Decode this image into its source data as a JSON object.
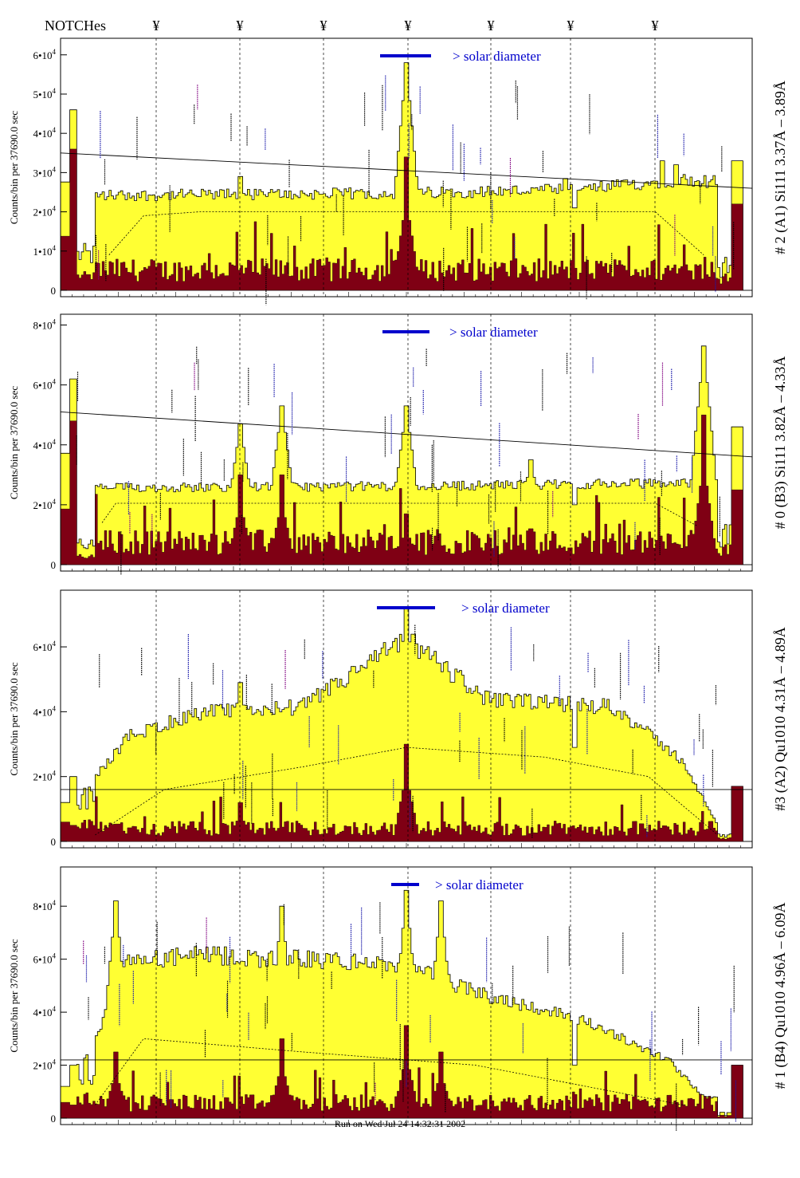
{
  "header": {
    "label": "NOTCHes",
    "notch_symbol": "¥",
    "notch_positions": [
      196,
      301,
      406,
      512,
      616,
      716,
      822
    ]
  },
  "footer": {
    "text": "Run on Wed Jul 24 14:32:31 2002"
  },
  "colors": {
    "fill": "#ffff33",
    "dark": "#7f0014",
    "accent": "#0000cc",
    "label_blue": "#1a1aaa",
    "label_purple": "#800080",
    "line": "#000000"
  },
  "chart_data": [
    {
      "type": "area",
      "ylabel": "Counts/bin per  37690.0 sec",
      "side_label": "# 2 (A1) Si111  3.37Å – 3.89Å",
      "annotation": "> solar diameter",
      "yticks": [
        {
          "v": 0,
          "label": "0"
        },
        {
          "v": 10000,
          "label": "1•10",
          "sup": "4"
        },
        {
          "v": 20000,
          "label": "2•10",
          "sup": "4"
        },
        {
          "v": 30000,
          "label": "3•10",
          "sup": "4"
        },
        {
          "v": 40000,
          "label": "4•10",
          "sup": "4"
        },
        {
          "v": 50000,
          "label": "5•10",
          "sup": "4"
        },
        {
          "v": 60000,
          "label": "6•10",
          "sup": "4"
        }
      ],
      "ymax": 63000,
      "fit_line": [
        35000,
        26000
      ],
      "outer_start": 28000,
      "outer_end": 27000,
      "left_edge": [
        46000,
        36000,
        10000
      ],
      "right_edge": [
        22000,
        30000,
        33000
      ],
      "plateau": [
        {
          "x": 0.13,
          "y": 24500
        },
        {
          "x": 0.5,
          "y": 25000
        },
        {
          "x": 0.75,
          "y": 26000
        },
        {
          "x": 0.9,
          "y": 28500
        },
        {
          "x": 0.94,
          "y": 28000
        }
      ],
      "dark_level": 4500,
      "spikes": [
        {
          "x": 0.5,
          "y": 58000,
          "d": 34000
        },
        {
          "x": 0.26,
          "y": 29000
        },
        {
          "x": 0.73,
          "y": 28500
        },
        {
          "x": 0.87,
          "y": 33000
        },
        {
          "x": 0.89,
          "y": 32000
        }
      ],
      "notches": [
        {
          "x": 0.744,
          "y": 21000
        }
      ],
      "dashed": [
        {
          "x": 0.07,
          "y": 9000
        },
        {
          "x": 0.12,
          "y": 19000
        },
        {
          "x": 0.2,
          "y": 20000
        },
        {
          "x": 0.86,
          "y": 20000
        },
        {
          "x": 0.93,
          "y": 9000
        }
      ]
    },
    {
      "type": "area",
      "ylabel": "Counts/bin per  37690.0 sec",
      "side_label": "# 0 (B3) Si111  3.82Å – 4.33Å",
      "annotation": "> solar diameter",
      "yticks": [
        {
          "v": 0,
          "label": "0"
        },
        {
          "v": 20000,
          "label": "2•10",
          "sup": "4"
        },
        {
          "v": 40000,
          "label": "4•10",
          "sup": "4"
        },
        {
          "v": 60000,
          "label": "6•10",
          "sup": "4"
        },
        {
          "v": 80000,
          "label": "8•10",
          "sup": "4"
        }
      ],
      "ymax": 82000,
      "fit_line": [
        51000,
        36000
      ],
      "outer_start": 27000,
      "outer_end": 27000,
      "left_edge": [
        62000,
        48000,
        8000
      ],
      "right_edge": [
        25000,
        45000,
        46000
      ],
      "plateau": [
        {
          "x": 0.06,
          "y": 26000
        },
        {
          "x": 0.5,
          "y": 26500
        },
        {
          "x": 0.88,
          "y": 27500
        }
      ],
      "dark_level": 6500,
      "spikes": [
        {
          "x": 0.26,
          "y": 47000,
          "d": 30000
        },
        {
          "x": 0.32,
          "y": 53000,
          "d": 30000
        },
        {
          "x": 0.5,
          "y": 53000,
          "d": 17000
        },
        {
          "x": 0.68,
          "y": 35000,
          "d": 12000
        },
        {
          "x": 0.93,
          "y": 73000,
          "d": 50000
        }
      ],
      "notches": [
        {
          "x": 0.744,
          "y": 20000
        }
      ],
      "dashed": [
        {
          "x": 0.06,
          "y": 14000
        },
        {
          "x": 0.08,
          "y": 20500
        },
        {
          "x": 0.86,
          "y": 20500
        },
        {
          "x": 0.92,
          "y": 13000
        }
      ]
    },
    {
      "type": "area",
      "ylabel": "Counts/bin per  37690.0 sec",
      "side_label": "#3 (A2) Qu1010  4.31Å – 4.89Å",
      "annotation": "> solar diameter",
      "yticks": [
        {
          "v": 0,
          "label": "0"
        },
        {
          "v": 20000,
          "label": "2•10",
          "sup": "4"
        },
        {
          "v": 40000,
          "label": "4•10",
          "sup": "4"
        },
        {
          "v": 60000,
          "label": "6•10",
          "sup": "4"
        }
      ],
      "ymax": 76000,
      "fit_line": [
        16000,
        16000
      ],
      "outer_start": 16000,
      "outer_end": 16000,
      "left_edge": [
        20000,
        5000,
        15000
      ],
      "right_edge": [
        20000,
        8000,
        17000
      ],
      "plateau": [
        {
          "x": 0.05,
          "y": 20000
        },
        {
          "x": 0.1,
          "y": 33000
        },
        {
          "x": 0.2,
          "y": 40000
        },
        {
          "x": 0.35,
          "y": 42000
        },
        {
          "x": 0.5,
          "y": 63000
        },
        {
          "x": 0.62,
          "y": 44000
        },
        {
          "x": 0.8,
          "y": 42000
        },
        {
          "x": 0.9,
          "y": 25000
        },
        {
          "x": 0.95,
          "y": 5000
        }
      ],
      "dark_level": 3500,
      "spikes": [
        {
          "x": 0.5,
          "y": 72000,
          "d": 30000
        },
        {
          "x": 0.26,
          "y": 49000,
          "d": 12000
        }
      ],
      "notches": [
        {
          "x": 0.744,
          "y": 29000
        }
      ],
      "dashed": [
        {
          "x": 0.05,
          "y": 2000
        },
        {
          "x": 0.15,
          "y": 16000
        },
        {
          "x": 0.35,
          "y": 23000
        },
        {
          "x": 0.5,
          "y": 29000
        },
        {
          "x": 0.7,
          "y": 26000
        },
        {
          "x": 0.85,
          "y": 20000
        },
        {
          "x": 0.95,
          "y": 2000
        }
      ]
    },
    {
      "type": "area",
      "ylabel": "Counts/bin per  37690.0 sec",
      "side_label": "# 1 (B4) Qu1010 4.96Å – 6.09Å",
      "annotation": "> solar diameter",
      "yticks": [
        {
          "v": 0,
          "label": "0"
        },
        {
          "v": 20000,
          "label": "2•10",
          "sup": "4"
        },
        {
          "v": 40000,
          "label": "4•10",
          "sup": "4"
        },
        {
          "v": 60000,
          "label": "6•10",
          "sup": "4"
        },
        {
          "v": 80000,
          "label": "8•10",
          "sup": "4"
        }
      ],
      "ymax": 93000,
      "fit_line": [
        22000,
        22000
      ],
      "outer_start": 22000,
      "outer_end": 22000,
      "left_edge": [
        20000,
        5000,
        20000
      ],
      "right_edge": [
        20000,
        8000,
        20000
      ],
      "plateau": [
        {
          "x": 0.05,
          "y": 30000
        },
        {
          "x": 0.1,
          "y": 60000
        },
        {
          "x": 0.2,
          "y": 62000
        },
        {
          "x": 0.4,
          "y": 60000
        },
        {
          "x": 0.5,
          "y": 58000
        },
        {
          "x": 0.6,
          "y": 48000
        },
        {
          "x": 0.75,
          "y": 38000
        },
        {
          "x": 0.88,
          "y": 22000
        },
        {
          "x": 0.93,
          "y": 8000
        }
      ],
      "dark_level": 5000,
      "spikes": [
        {
          "x": 0.08,
          "y": 82000,
          "d": 25000
        },
        {
          "x": 0.32,
          "y": 80000,
          "d": 30000
        },
        {
          "x": 0.5,
          "y": 86000,
          "d": 35000
        },
        {
          "x": 0.55,
          "y": 82000,
          "d": 25000
        }
      ],
      "notches": [
        {
          "x": 0.744,
          "y": 20000
        }
      ],
      "dashed": [
        {
          "x": 0.05,
          "y": 5000
        },
        {
          "x": 0.12,
          "y": 30000
        },
        {
          "x": 0.35,
          "y": 25000
        },
        {
          "x": 0.6,
          "y": 20000
        },
        {
          "x": 0.8,
          "y": 10000
        },
        {
          "x": 0.9,
          "y": 5000
        }
      ]
    }
  ]
}
